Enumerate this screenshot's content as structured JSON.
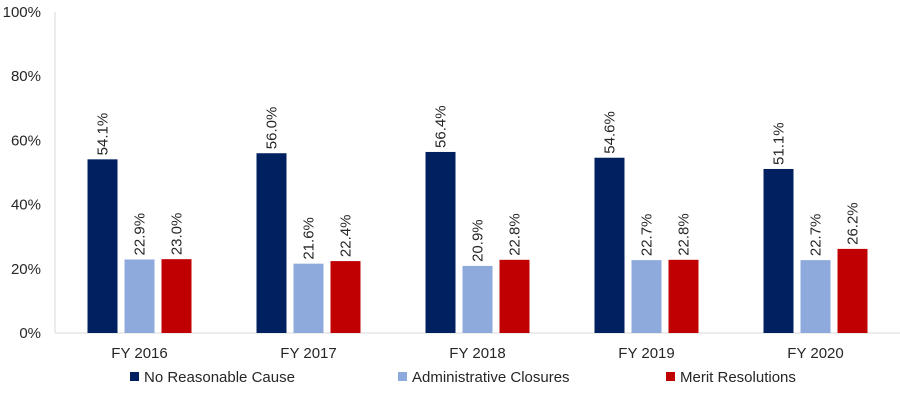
{
  "chart_data": {
    "type": "bar",
    "title": "",
    "xlabel": "",
    "ylabel": "",
    "categories": [
      "FY 2016",
      "FY 2017",
      "FY 2018",
      "FY 2019",
      "FY 2020"
    ],
    "series": [
      {
        "name": "No Reasonable Cause",
        "color": "#002060",
        "values": [
          54.1,
          56.0,
          56.4,
          54.6,
          51.1
        ],
        "labels": [
          "54.1%",
          "56.0%",
          "56.4%",
          "54.6%",
          "51.1%"
        ]
      },
      {
        "name": "Administrative Closures",
        "color": "#8EA9DB",
        "values": [
          22.9,
          21.6,
          20.9,
          22.7,
          22.7
        ],
        "labels": [
          "22.9%",
          "21.6%",
          "20.9%",
          "22.7%",
          "22.7%"
        ]
      },
      {
        "name": "Merit Resolutions",
        "color": "#C00000",
        "values": [
          23.0,
          22.4,
          22.8,
          22.8,
          26.2
        ],
        "labels": [
          "23.0%",
          "22.4%",
          "22.8%",
          "22.8%",
          "26.2%"
        ]
      }
    ],
    "ylim": [
      0,
      100
    ],
    "yticks": [
      0,
      20,
      40,
      60,
      80,
      100
    ],
    "ytick_labels": [
      "0%",
      "20%",
      "40%",
      "60%",
      "80%",
      "100%"
    ],
    "grid": false,
    "legend_position": "bottom"
  }
}
